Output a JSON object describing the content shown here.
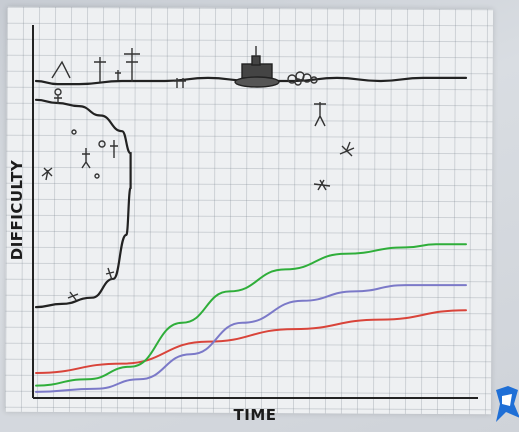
{
  "chart_data": {
    "type": "line",
    "xlabel": "TIME",
    "ylabel": "DIFFICULTY",
    "grid": true,
    "legend": "none",
    "xlim": [
      0,
      100
    ],
    "ylim": [
      0,
      100
    ],
    "series": [
      {
        "color": "#d9443a",
        "x": [
          0,
          20,
          40,
          60,
          80,
          100
        ],
        "y": [
          7,
          10,
          17,
          21,
          24,
          27
        ]
      },
      {
        "color": "#2fae3a",
        "x": [
          0,
          12,
          22,
          34,
          45,
          58,
          72,
          86,
          93,
          100
        ],
        "y": [
          3,
          5,
          9,
          23,
          33,
          40,
          45,
          47,
          48,
          48
        ]
      },
      {
        "color": "#7b79c8",
        "x": [
          0,
          14,
          24,
          36,
          48,
          62,
          74,
          86,
          100
        ],
        "y": [
          1,
          2,
          5,
          13,
          23,
          30,
          33,
          35,
          35
        ]
      },
      {
        "color": "#222222",
        "x": [
          0,
          6,
          13,
          18,
          21,
          22,
          22,
          20,
          15,
          10,
          5,
          0
        ],
        "y": [
          28,
          29,
          31,
          37,
          51,
          66,
          77,
          84,
          89,
          92,
          93,
          94
        ]
      },
      {
        "color": "#222222",
        "x": [
          0,
          5,
          10,
          20,
          30,
          40,
          50,
          60,
          70,
          80,
          90,
          100
        ],
        "y": [
          100,
          99,
          99,
          100,
          100,
          101,
          100,
          100,
          101,
          100,
          101,
          101
        ]
      }
    ]
  },
  "colors": {
    "paper": "#eef0f2",
    "grid": "#9aa2aa",
    "ink": "#222222"
  },
  "icons": [
    "cartoon-cliff-with-figures",
    "tank-drawing",
    "logo-mark-icon"
  ]
}
